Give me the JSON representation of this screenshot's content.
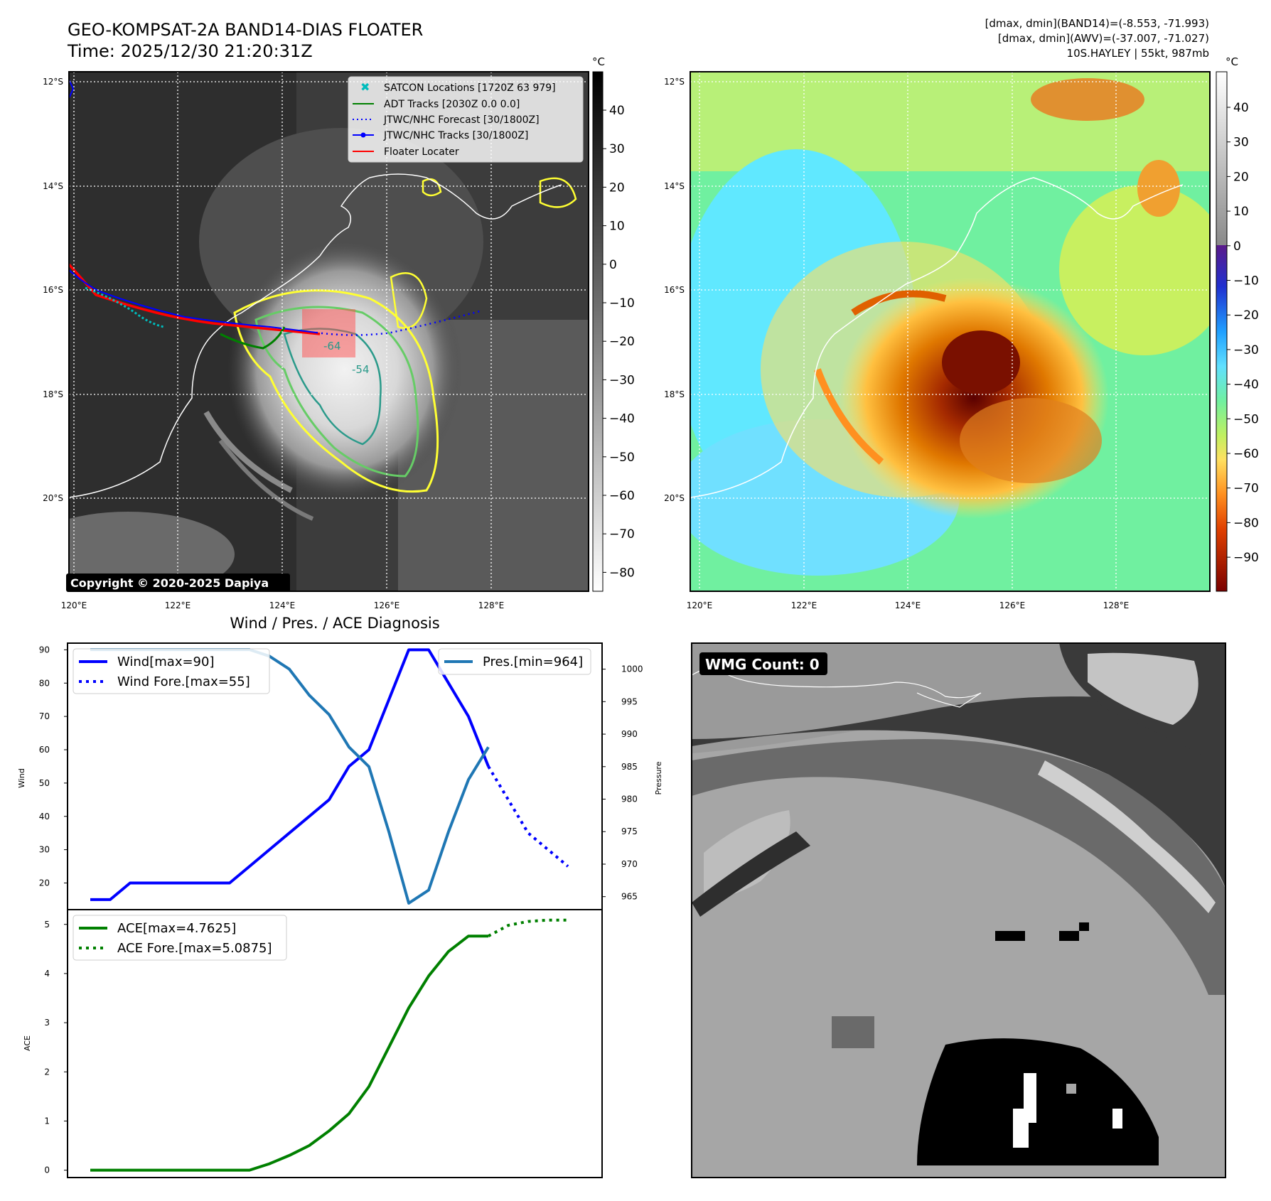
{
  "header": {
    "title": "GEO-KOMPSAT-2A BAND14-DIAS FLOATER",
    "time": "Time: 2025/12/30 21:20:31Z",
    "stats_band14": "[dmax, dmin](BAND14)=(-8.553, -71.993)",
    "stats_awv": "[dmax, dmin](AWV)=(-37.007, -71.027)",
    "storm": "10S.HAYLEY | 55kt, 987mb"
  },
  "maps": {
    "lat_labels": [
      "12°S",
      "14°S",
      "16°S",
      "18°S",
      "20°S"
    ],
    "lon_labels": [
      "120°E",
      "122°E",
      "124°E",
      "126°E",
      "128°E"
    ],
    "copyright": "Copyright © 2020-2025 Dapiya",
    "contour_labels": [
      "-64",
      "-54"
    ],
    "legend": [
      {
        "label": "SATCON Locations [1720Z 63 979]",
        "color": "#00bcbc",
        "style": "x"
      },
      {
        "label": "ADT Tracks [2030Z 0.0 0.0]",
        "color": "#008000",
        "style": "solid"
      },
      {
        "label": "JTWC/NHC Forecast [30/1800Z]",
        "color": "#0000ff",
        "style": "dotted"
      },
      {
        "label": "JTWC/NHC Tracks [30/1800Z]",
        "color": "#0000ff",
        "style": "dot-line"
      },
      {
        "label": "Floater Locater",
        "color": "#ff0000",
        "style": "solid"
      }
    ],
    "gray_colorbar": {
      "unit": "°C",
      "ticks": [
        40,
        30,
        20,
        10,
        0,
        -10,
        -20,
        -30,
        -40,
        -50,
        -60,
        -70,
        -80
      ]
    },
    "color_colorbar": {
      "unit": "°C",
      "ticks": [
        40,
        30,
        20,
        10,
        0,
        -10,
        -20,
        -30,
        -40,
        -50,
        -60,
        -70,
        -80,
        -90
      ]
    }
  },
  "wmg": {
    "label": "WMG Count: 0"
  },
  "chart_data": [
    {
      "type": "line",
      "title": "Wind / Pres. / ACE Diagnosis",
      "ylabel": "Wind",
      "ylabel_right": "Pressure",
      "ylim": [
        12,
        92
      ],
      "ylim_right": [
        963,
        1004
      ],
      "yticks": [
        20,
        30,
        40,
        50,
        60,
        70,
        80,
        90
      ],
      "yticks_right": [
        965,
        970,
        975,
        980,
        985,
        990,
        995,
        1000
      ],
      "legend_left": [
        "Wind[max=90]",
        "Wind Fore.[max=55]"
      ],
      "legend_right": [
        "Pres.[min=964]"
      ],
      "series": [
        {
          "name": "Wind[max=90]",
          "axis": "left",
          "color": "#0000ff",
          "style": "solid",
          "x": [
            0,
            1,
            2,
            3,
            4,
            5,
            6,
            7,
            8,
            9,
            10,
            11,
            12,
            13,
            14,
            15,
            16,
            17,
            18,
            19,
            20
          ],
          "values": [
            15,
            15,
            20,
            20,
            20,
            20,
            20,
            20,
            25,
            30,
            35,
            40,
            45,
            55,
            60,
            75,
            90,
            90,
            80,
            70,
            55
          ]
        },
        {
          "name": "Wind Fore.[max=55]",
          "axis": "left",
          "color": "#0000ff",
          "style": "dotted",
          "x": [
            20,
            21,
            22,
            23,
            24
          ],
          "values": [
            55,
            45,
            35,
            30,
            25
          ]
        },
        {
          "name": "Pres.[min=964]",
          "axis": "right",
          "color": "#1f77b4",
          "style": "solid",
          "x": [
            0,
            1,
            2,
            3,
            4,
            5,
            6,
            7,
            8,
            9,
            10,
            11,
            12,
            13,
            14,
            15,
            16,
            17,
            18,
            19,
            20
          ],
          "values": [
            1003,
            1003,
            1003,
            1003,
            1003,
            1003,
            1003,
            1003,
            1003,
            1002,
            1000,
            996,
            993,
            988,
            985,
            975,
            964,
            966,
            975,
            983,
            988
          ]
        }
      ]
    },
    {
      "type": "line",
      "ylabel": "ACE",
      "ylim": [
        -0.15,
        5.3
      ],
      "yticks": [
        0,
        1,
        2,
        3,
        4,
        5
      ],
      "legend": [
        "ACE[max=4.7625]",
        "ACE Fore.[max=5.0875]"
      ],
      "series": [
        {
          "name": "ACE[max=4.7625]",
          "color": "#008000",
          "style": "solid",
          "x": [
            0,
            1,
            2,
            3,
            4,
            5,
            6,
            7,
            8,
            9,
            10,
            11,
            12,
            13,
            14,
            15,
            16,
            17,
            18,
            19,
            20
          ],
          "values": [
            0,
            0,
            0,
            0,
            0,
            0,
            0,
            0,
            0,
            0.13,
            0.3,
            0.5,
            0.8,
            1.15,
            1.7,
            2.5,
            3.3,
            3.95,
            4.45,
            4.7625,
            4.7625
          ]
        },
        {
          "name": "ACE Fore.[max=5.0875]",
          "color": "#008000",
          "style": "dotted",
          "x": [
            20,
            21,
            22,
            23,
            24
          ],
          "values": [
            4.7625,
            4.98,
            5.06,
            5.0875,
            5.0875
          ]
        }
      ]
    }
  ]
}
